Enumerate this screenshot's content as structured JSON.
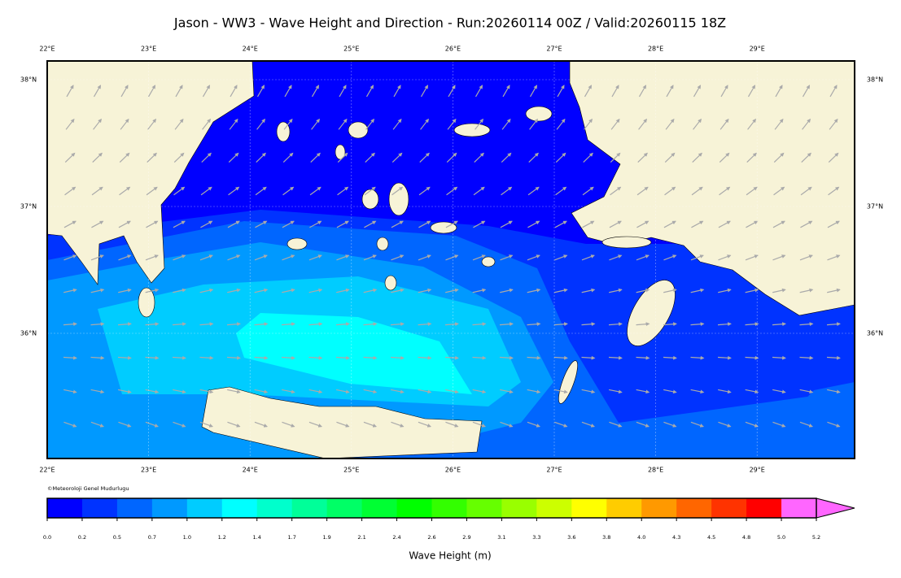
{
  "title": "Jason - WW3 - Wave Height and Direction - Run:20260114 00Z / Valid:20260115 18Z",
  "lon_labels": [
    "22°E",
    "23°E",
    "24°E",
    "25°E",
    "26°E",
    "27°E",
    "28°E",
    "29°E"
  ],
  "lat_labels": [
    "38°N",
    "37°N",
    "36°N"
  ],
  "credit": "©Meteoroloji Genel Mudurlugu",
  "colorbar": {
    "label": "Wave Height (m)",
    "ticks": [
      "0.0",
      "0.2",
      "0.5",
      "0.7",
      "1.0",
      "1.2",
      "1.4",
      "1.7",
      "1.9",
      "2.1",
      "2.4",
      "2.6",
      "2.9",
      "3.1",
      "3.3",
      "3.6",
      "3.8",
      "4.0",
      "4.3",
      "4.5",
      "4.8",
      "5.0",
      "5.2"
    ],
    "colors": [
      "#0000ff",
      "#0033ff",
      "#0066ff",
      "#0099ff",
      "#00ccff",
      "#00ffff",
      "#00ffcc",
      "#00ff99",
      "#00ff66",
      "#00ff33",
      "#00ff00",
      "#33ff00",
      "#66ff00",
      "#99ff00",
      "#ccff00",
      "#ffff00",
      "#ffcc00",
      "#ff9900",
      "#ff6600",
      "#ff3300",
      "#ff0000",
      "#ff66ff"
    ]
  }
}
